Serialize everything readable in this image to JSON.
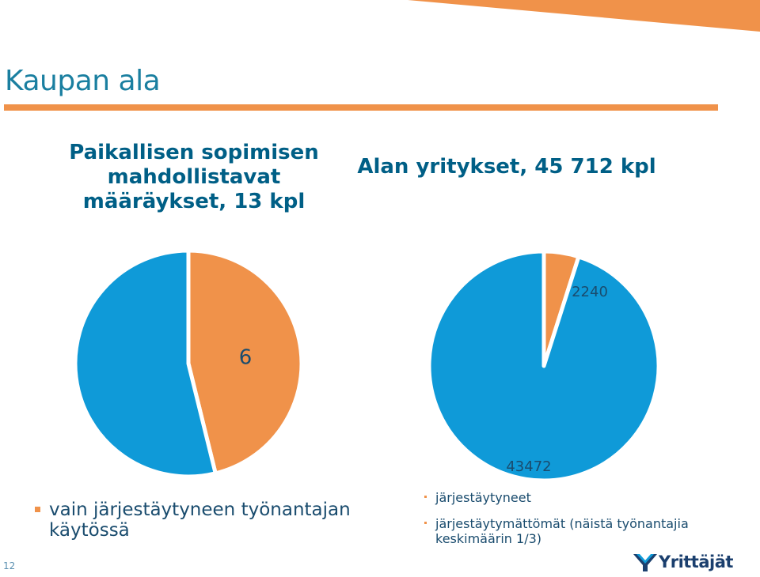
{
  "page": {
    "title": "Kaupan ala",
    "page_number": "12",
    "logo_text": "Yrittäjät",
    "colors": {
      "accent": "#f0924a",
      "blue": "#0f9ad8",
      "title": "#1a7fa0",
      "heading": "#005f86"
    }
  },
  "chart_data": [
    {
      "type": "pie",
      "title": "Paikallisen sopimisen mahdollistavat määräykset, 13 kpl",
      "categories": [
        "vain järjestäytyneen työnantajan käytössä",
        ""
      ],
      "values": [
        6,
        7
      ],
      "data_labels": [
        "6",
        ""
      ],
      "colors": [
        "#f0924a",
        "#0f9ad8"
      ],
      "legend": {
        "placement": "bottom",
        "entries": [
          "vain järjestäytyneen työnantajan käytössä"
        ]
      }
    },
    {
      "type": "pie",
      "title": "Alan yritykset, 45 712 kpl",
      "categories": [
        "järjestäytyneet",
        "järjestäytymättömät (näistä työnantajia keskimäärin 1/3)"
      ],
      "values": [
        2240,
        43472
      ],
      "data_labels": [
        "2240",
        "43472"
      ],
      "colors": [
        "#f0924a",
        "#0f9ad8"
      ],
      "legend": {
        "placement": "bottom",
        "entries": [
          "järjestäytyneet",
          "järjestäytymättömät (näistä työnantajia keskimäärin 1/3)"
        ]
      }
    }
  ]
}
